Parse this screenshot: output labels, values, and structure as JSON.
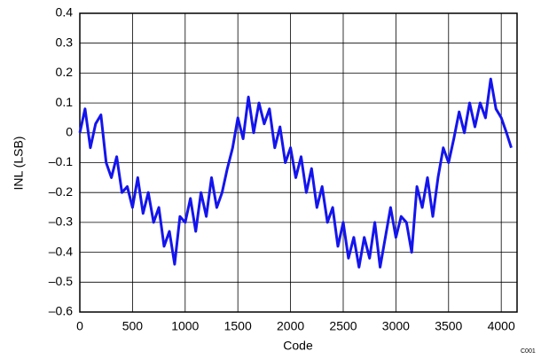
{
  "chart_data": {
    "type": "line",
    "x_label": "Code",
    "y_label": "INL (LSB)",
    "footnote": "C001",
    "x": [
      0,
      50,
      100,
      150,
      200,
      250,
      300,
      350,
      400,
      450,
      500,
      550,
      600,
      650,
      700,
      750,
      800,
      850,
      900,
      950,
      1000,
      1050,
      1100,
      1150,
      1200,
      1250,
      1300,
      1350,
      1400,
      1450,
      1500,
      1550,
      1600,
      1650,
      1700,
      1750,
      1800,
      1850,
      1900,
      1950,
      2000,
      2050,
      2100,
      2150,
      2200,
      2250,
      2300,
      2350,
      2400,
      2450,
      2500,
      2550,
      2600,
      2650,
      2700,
      2750,
      2800,
      2850,
      2900,
      2950,
      3000,
      3050,
      3100,
      3150,
      3200,
      3250,
      3300,
      3350,
      3400,
      3450,
      3500,
      3550,
      3600,
      3650,
      3700,
      3750,
      3800,
      3850,
      3900,
      3950,
      4000,
      4050,
      4095
    ],
    "series": [
      {
        "color": "#1414ee",
        "values": [
          0.0,
          0.08,
          -0.05,
          0.03,
          0.06,
          -0.1,
          -0.15,
          -0.08,
          -0.2,
          -0.18,
          -0.25,
          -0.15,
          -0.27,
          -0.2,
          -0.3,
          -0.25,
          -0.38,
          -0.33,
          -0.44,
          -0.28,
          -0.3,
          -0.22,
          -0.33,
          -0.2,
          -0.28,
          -0.15,
          -0.25,
          -0.2,
          -0.12,
          -0.05,
          0.05,
          -0.02,
          0.12,
          0.0,
          0.1,
          0.03,
          0.08,
          -0.05,
          0.02,
          -0.1,
          -0.05,
          -0.15,
          -0.08,
          -0.2,
          -0.12,
          -0.25,
          -0.18,
          -0.3,
          -0.25,
          -0.38,
          -0.3,
          -0.42,
          -0.35,
          -0.45,
          -0.35,
          -0.42,
          -0.3,
          -0.45,
          -0.35,
          -0.25,
          -0.35,
          -0.28,
          -0.3,
          -0.4,
          -0.18,
          -0.25,
          -0.15,
          -0.28,
          -0.15,
          -0.05,
          -0.1,
          -0.02,
          0.07,
          0.0,
          0.1,
          0.02,
          0.1,
          0.05,
          0.18,
          0.08,
          0.05,
          0.0,
          -0.05
        ]
      }
    ],
    "xlim": [
      0,
      4150
    ],
    "ylim": [
      -0.6,
      0.4
    ],
    "xticks": [
      0,
      500,
      1000,
      1500,
      2000,
      2500,
      3000,
      3500,
      4000
    ],
    "yticks": [
      {
        "value": -0.6,
        "label": "–0.6"
      },
      {
        "value": -0.5,
        "label": "–0.5"
      },
      {
        "value": -0.4,
        "label": "–0.4"
      },
      {
        "value": -0.3,
        "label": "–0.3"
      },
      {
        "value": -0.2,
        "label": "–0.2"
      },
      {
        "value": -0.1,
        "label": "–0.1"
      },
      0,
      0.1,
      0.2,
      0.3,
      0.4
    ],
    "grid": true
  }
}
